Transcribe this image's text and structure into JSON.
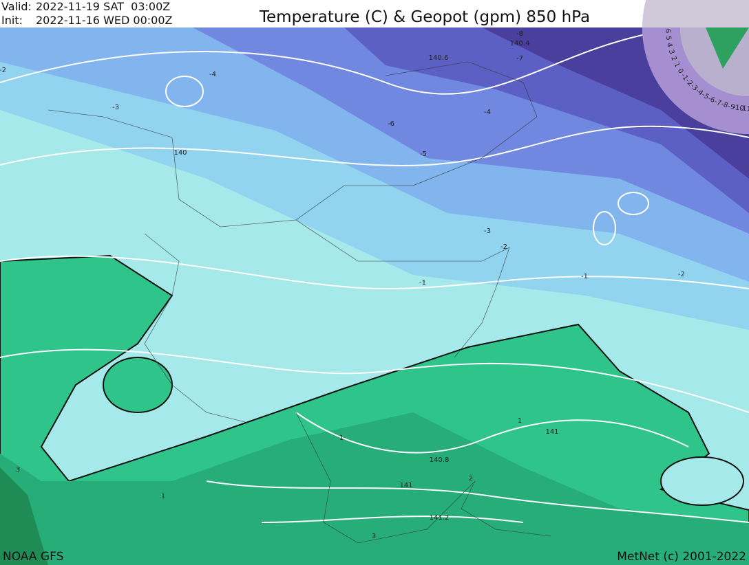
{
  "header": {
    "valid_label": "Valid:",
    "valid_time": "2022-11-19 SAT  03:00Z",
    "init_label": "Init:",
    "init_time": "2022-11-16 WED 00:00Z",
    "title": "Temperature (C) & Geopot (gpm) 850 hPa"
  },
  "footer": {
    "source": "NOAA GFS",
    "credit": "MetNet (c) 2001-2022"
  },
  "contour_labels": [
    "-8",
    "140.4",
    "140.6",
    "-7",
    "-2",
    "-4",
    "-3",
    "-6",
    "-4",
    "-5",
    "140",
    "-3",
    "-2",
    "-1",
    "-1",
    "-2",
    "1",
    "141",
    "1",
    "140.8",
    "2",
    "141",
    "141.2",
    "3",
    "1",
    "3"
  ],
  "scale_labels": [
    "6",
    "5",
    "4",
    "3",
    "2",
    "1",
    "0",
    "-1",
    "-2",
    "-3",
    "-4",
    "-5",
    "-6",
    "-7",
    "-8",
    "-9",
    "-10",
    "-11"
  ]
}
